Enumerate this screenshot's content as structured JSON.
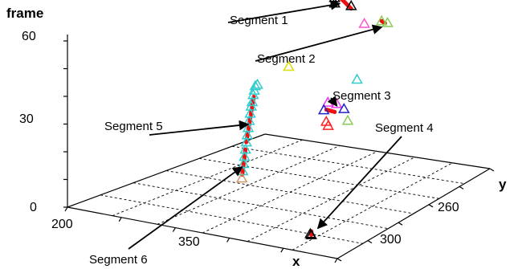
{
  "chart_data": {
    "type": "scatter",
    "title": "",
    "axes": {
      "x": {
        "label": "x",
        "ticks": [
          "200",
          "350"
        ]
      },
      "y": {
        "label": "y",
        "ticks": [
          "260",
          "300"
        ]
      },
      "z": {
        "label": "frame",
        "ticks": [
          "0",
          "30",
          "60"
        ],
        "range": [
          0,
          60
        ]
      }
    },
    "grid": true,
    "marker": "triangle",
    "points": [
      {
        "x": 259,
        "y": 205,
        "frame": 57,
        "color": "#ff9060"
      },
      {
        "x": 287,
        "y": 207,
        "frame": 62,
        "color": "#ff9060"
      },
      {
        "x": 274,
        "y": 206,
        "frame": 57,
        "color": "#000000"
      },
      {
        "x": 277,
        "y": 206,
        "frame": 55,
        "color": "#000000"
      },
      {
        "x": 277,
        "y": 206,
        "frame": 53,
        "color": "#000000"
      },
      {
        "x": 293,
        "y": 206,
        "frame": 53,
        "color": "#000000"
      },
      {
        "x": 300,
        "y": 202,
        "frame": 46,
        "color": "#ff55cc"
      },
      {
        "x": 304,
        "y": 193,
        "frame": 45,
        "color": "#88cc55"
      },
      {
        "x": 307,
        "y": 191,
        "frame": 44,
        "color": "#88cc55"
      },
      {
        "x": 258,
        "y": 223,
        "frame": 33,
        "color": "#dddd00"
      },
      {
        "x": 321,
        "y": 222,
        "frame": 32,
        "color": "#33cccc"
      },
      {
        "x": 322,
        "y": 243,
        "frame": 29,
        "color": "#ee33ee"
      },
      {
        "x": 330,
        "y": 243,
        "frame": 29,
        "color": "#ee33ee"
      },
      {
        "x": 330,
        "y": 252,
        "frame": 29,
        "color": "#2222cc"
      },
      {
        "x": 338,
        "y": 244,
        "frame": 28,
        "color": "#2222cc"
      },
      {
        "x": 336,
        "y": 255,
        "frame": 26,
        "color": "#ff2222"
      },
      {
        "x": 339,
        "y": 256,
        "frame": 25,
        "color": "#ff2222"
      },
      {
        "x": 349,
        "y": 250,
        "frame": 26,
        "color": "#88cc55"
      },
      {
        "x": 376,
        "y": 300,
        "frame": 0,
        "color": "#000000"
      },
      {
        "x": 378,
        "y": 301,
        "frame": 0,
        "color": "#000000"
      },
      {
        "x": 230,
        "y": 224,
        "frame": 25,
        "color": "#33cccc"
      },
      {
        "x": 231,
        "y": 226,
        "frame": 25,
        "color": "#33cccc"
      },
      {
        "x": 233,
        "y": 228,
        "frame": 24,
        "color": "#33cccc"
      },
      {
        "x": 235,
        "y": 230,
        "frame": 23,
        "color": "#33cccc"
      },
      {
        "x": 237,
        "y": 232,
        "frame": 21,
        "color": "#33cccc"
      },
      {
        "x": 239,
        "y": 234,
        "frame": 20,
        "color": "#33cccc"
      },
      {
        "x": 241,
        "y": 236,
        "frame": 18,
        "color": "#33cccc"
      },
      {
        "x": 243,
        "y": 238,
        "frame": 16,
        "color": "#33cccc"
      },
      {
        "x": 245,
        "y": 240,
        "frame": 14,
        "color": "#33cccc"
      },
      {
        "x": 247,
        "y": 242,
        "frame": 12,
        "color": "#33cccc"
      },
      {
        "x": 249,
        "y": 244,
        "frame": 10,
        "color": "#33cccc"
      },
      {
        "x": 251,
        "y": 246,
        "frame": 8,
        "color": "#33cccc"
      },
      {
        "x": 253,
        "y": 248,
        "frame": 6,
        "color": "#33cccc"
      },
      {
        "x": 255,
        "y": 250,
        "frame": 4,
        "color": "#33cccc"
      },
      {
        "x": 257,
        "y": 252,
        "frame": 2,
        "color": "#33cccc"
      },
      {
        "x": 259,
        "y": 254,
        "frame": 0,
        "color": "#cc9966"
      }
    ],
    "segments": [
      {
        "name": "Segment 1",
        "color": "#ee1111",
        "start": {
          "x": 274,
          "y": 206,
          "frame": 58
        },
        "end": {
          "x": 293,
          "y": 206,
          "frame": 52
        }
      },
      {
        "name": "Segment 2",
        "color": "#ee1111",
        "start": {
          "x": 304,
          "y": 193,
          "frame": 45
        },
        "end": {
          "x": 306,
          "y": 192,
          "frame": 44
        }
      },
      {
        "name": "Segment 3",
        "color": "#ee1111",
        "start": {
          "x": 331,
          "y": 251,
          "frame": 29
        },
        "end": {
          "x": 336,
          "y": 249,
          "frame": 28
        }
      },
      {
        "name": "Segment 4",
        "color": "#ee1111",
        "start": {
          "x": 377,
          "y": 300,
          "frame": 1
        },
        "end": {
          "x": 378,
          "y": 301,
          "frame": 0
        }
      },
      {
        "name": "Segment 5",
        "color": "#ee1111",
        "start": {
          "x": 234,
          "y": 229,
          "frame": 22
        },
        "end": {
          "x": 249,
          "y": 244,
          "frame": 10
        }
      },
      {
        "name": "Segment 6",
        "color": "#ee1111",
        "start": {
          "x": 251,
          "y": 246,
          "frame": 8
        },
        "end": {
          "x": 258,
          "y": 253,
          "frame": 1
        }
      }
    ]
  }
}
